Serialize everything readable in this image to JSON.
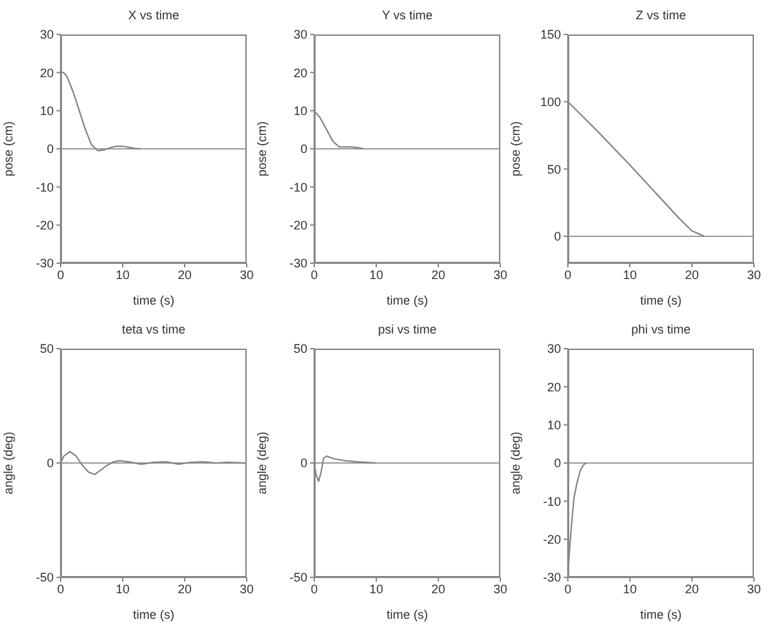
{
  "chart_data": [
    {
      "type": "line",
      "title": "X vs time",
      "xlabel": "time (s)",
      "ylabel": "pose (cm)",
      "xlim": [
        0,
        30
      ],
      "xticks": [
        0,
        10,
        20,
        30
      ],
      "ylim": [
        -30,
        30
      ],
      "yticks": [
        -30,
        -20,
        -10,
        0,
        10,
        20,
        30
      ],
      "grid": false,
      "ref_lines": [
        {
          "axis": "y",
          "value": 0,
          "color": "#a0a0a0"
        }
      ],
      "series": [
        {
          "color": "#808080",
          "x": [
            0,
            0.5,
            1,
            2,
            3,
            4,
            5,
            6,
            7,
            8,
            9,
            10,
            11,
            12,
            13
          ],
          "values": [
            20,
            20,
            19,
            15,
            10,
            5,
            1,
            -0.5,
            -0.3,
            0.3,
            0.7,
            0.7,
            0.4,
            0.1,
            0
          ]
        }
      ]
    },
    {
      "type": "line",
      "title": "Y vs time",
      "xlabel": "time (s)",
      "ylabel": "pose (cm)",
      "xlim": [
        0,
        30
      ],
      "xticks": [
        0,
        10,
        20,
        30
      ],
      "ylim": [
        -30,
        30
      ],
      "yticks": [
        -30,
        -20,
        -10,
        0,
        10,
        20,
        30
      ],
      "grid": false,
      "ref_lines": [
        {
          "axis": "y",
          "value": 0,
          "color": "#a0a0a0"
        }
      ],
      "series": [
        {
          "color": "#808080",
          "x": [
            0,
            1,
            2,
            3,
            4,
            5,
            6,
            7,
            8
          ],
          "values": [
            10,
            8,
            5,
            2,
            0.5,
            0.5,
            0.5,
            0.3,
            0
          ]
        }
      ]
    },
    {
      "type": "line",
      "title": "Z vs time",
      "xlabel": "time (s)",
      "ylabel": "pose (cm)",
      "xlim": [
        0,
        30
      ],
      "xticks": [
        0,
        10,
        20,
        30
      ],
      "ylim": [
        -20,
        150
      ],
      "yticks": [
        0,
        50,
        100,
        150
      ],
      "grid": false,
      "ref_lines": [
        {
          "axis": "y",
          "value": 0,
          "color": "#a0a0a0"
        }
      ],
      "series": [
        {
          "color": "#808080",
          "x": [
            0,
            5,
            10,
            15,
            18,
            20,
            21,
            22
          ],
          "values": [
            100,
            77,
            53,
            28,
            13,
            4,
            2,
            0
          ]
        }
      ]
    },
    {
      "type": "line",
      "title": "teta vs time",
      "xlabel": "time (s)",
      "ylabel": "angle (deg)",
      "xlim": [
        0,
        30
      ],
      "xticks": [
        0,
        10,
        20,
        30
      ],
      "ylim": [
        -50,
        50
      ],
      "yticks": [
        -50,
        0,
        50
      ],
      "grid": false,
      "ref_lines": [
        {
          "axis": "y",
          "value": 0,
          "color": "#a0a0a0"
        }
      ],
      "series": [
        {
          "color": "#808080",
          "x": [
            0,
            0.5,
            1.5,
            2.5,
            3.5,
            4.5,
            5.5,
            6.5,
            7.5,
            8.5,
            9.5,
            11,
            13,
            15,
            17,
            19,
            21,
            23,
            25,
            27,
            30
          ],
          "values": [
            0,
            3,
            5,
            3,
            -1,
            -4,
            -5,
            -3,
            -1,
            0.5,
            1,
            0.5,
            -0.5,
            0.3,
            0.5,
            -0.5,
            0.3,
            0.5,
            0,
            0.3,
            0
          ]
        }
      ]
    },
    {
      "type": "line",
      "title": "psi vs time",
      "xlabel": "time (s)",
      "ylabel": "angle (deg)",
      "xlim": [
        0,
        30
      ],
      "xticks": [
        0,
        10,
        20,
        30
      ],
      "ylim": [
        -50,
        50
      ],
      "yticks": [
        -50,
        0,
        50
      ],
      "grid": false,
      "ref_lines": [
        {
          "axis": "y",
          "value": 0,
          "color": "#a0a0a0"
        }
      ],
      "series": [
        {
          "color": "#808080",
          "x": [
            0,
            0.3,
            0.7,
            1.1,
            1.5,
            2,
            3,
            5,
            7,
            10
          ],
          "values": [
            0,
            -5,
            -8,
            -4,
            2,
            3,
            2,
            1,
            0.5,
            0
          ]
        }
      ]
    },
    {
      "type": "line",
      "title": "phi vs time",
      "xlabel": "time (s)",
      "ylabel": "angle (deg)",
      "xlim": [
        0,
        30
      ],
      "xticks": [
        0,
        10,
        20,
        30
      ],
      "ylim": [
        -30,
        30
      ],
      "yticks": [
        -30,
        -20,
        -10,
        0,
        10,
        20,
        30
      ],
      "grid": false,
      "ref_lines": [
        {
          "axis": "y",
          "value": 0,
          "color": "#a0a0a0"
        }
      ],
      "series": [
        {
          "color": "#808080",
          "x": [
            0,
            0.3,
            0.7,
            1,
            1.5,
            2,
            2.5,
            3
          ],
          "values": [
            -30,
            -22,
            -14,
            -9,
            -5,
            -2,
            -0.5,
            0
          ]
        }
      ]
    }
  ]
}
